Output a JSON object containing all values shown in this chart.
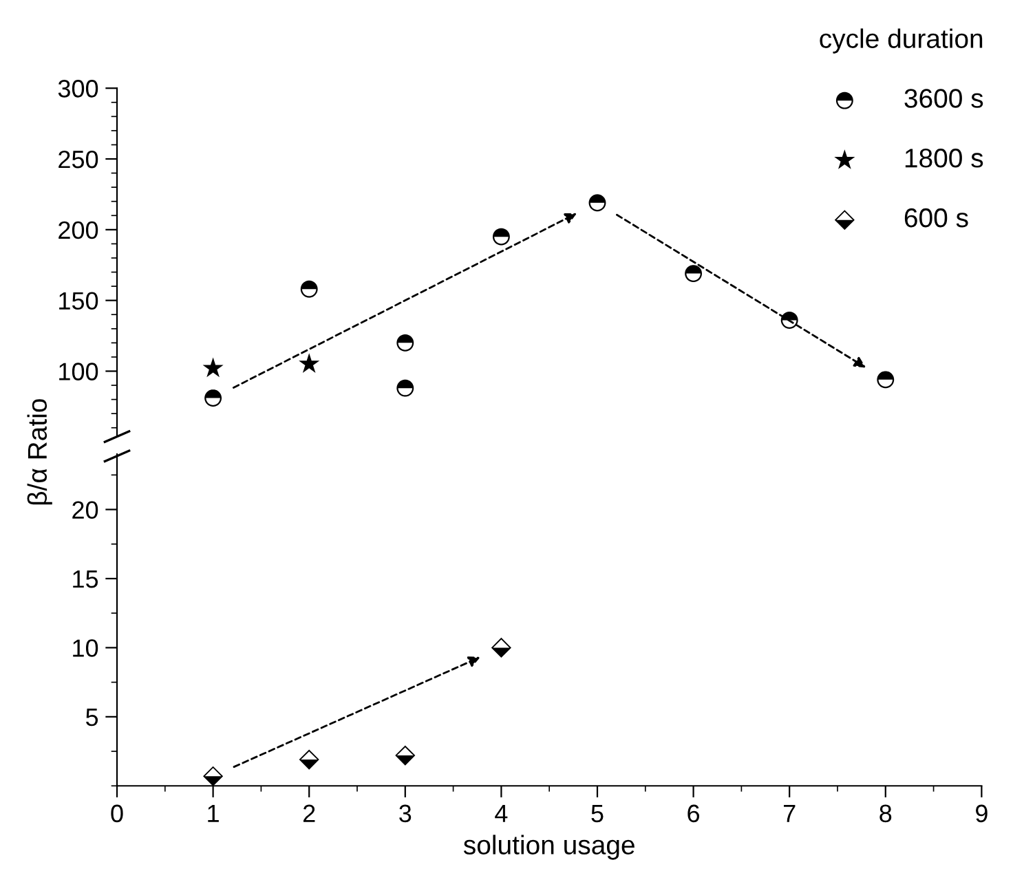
{
  "chart_data": [
    {
      "type": "scatter",
      "legend_title": "cycle duration",
      "xlim": [
        0,
        9
      ],
      "xticks": [
        0,
        1,
        2,
        3,
        4,
        5,
        6,
        7,
        8,
        9
      ],
      "ylim": [
        55,
        300
      ],
      "yticks": [
        100,
        150,
        200,
        250,
        300
      ],
      "ylabel": "β/α Ratio",
      "tick_labels": "y",
      "legend": "top right",
      "grid": false,
      "series": [
        {
          "name": "3600 s",
          "color": "#000000",
          "marker": "circle",
          "x": [
            1,
            2,
            3,
            3,
            4,
            5,
            6,
            7,
            8
          ],
          "values": [
            81,
            158,
            120,
            88,
            195,
            219,
            169,
            136,
            94
          ]
        },
        {
          "name": "1800 s",
          "color": "#000000",
          "marker": "star",
          "x": [
            1,
            2
          ],
          "values": [
            102,
            105
          ]
        }
      ]
    },
    {
      "type": "scatter",
      "xlabel": "solution usage",
      "xlim": [
        0,
        9
      ],
      "xticks": [
        0,
        1,
        2,
        3,
        4,
        5,
        6,
        7,
        8,
        9
      ],
      "ylim": [
        0,
        24
      ],
      "yticks": [
        5,
        10,
        15,
        20
      ],
      "legend": "top right",
      "grid": false,
      "series": [
        {
          "name": "600 s",
          "color": "#000000",
          "marker": "diamond",
          "x": [
            1,
            2,
            3,
            4
          ],
          "values": [
            0.7,
            1.9,
            2.2,
            10.0
          ]
        }
      ]
    }
  ]
}
